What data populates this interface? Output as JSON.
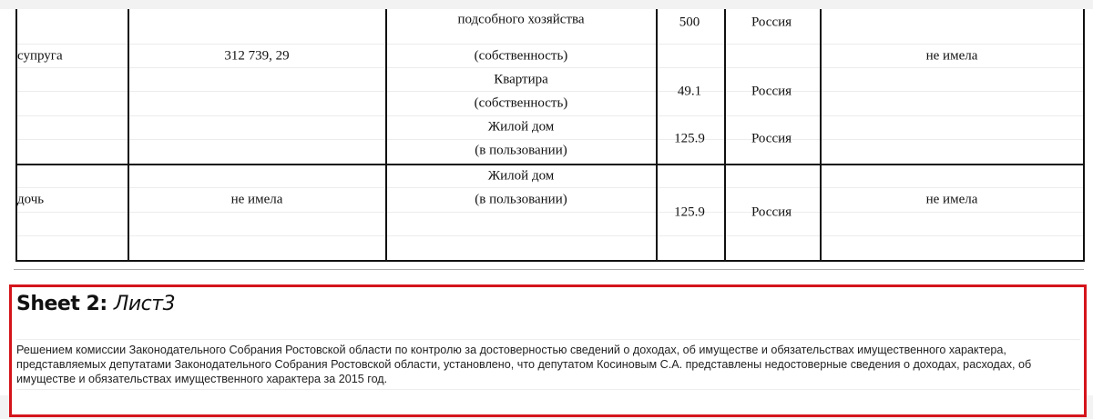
{
  "table": {
    "rows": [
      {
        "relation": "супруга",
        "income": "312 739, 29",
        "objects": [
          "подсобного хозяйства",
          "(собственность)",
          "Квартира",
          "(собственность)",
          "Жилой дом",
          "(в пользовании)"
        ],
        "areas": [
          "500",
          "49.1",
          "125.9"
        ],
        "countries": [
          "Россия",
          "Россия",
          "Россия"
        ],
        "vehicles": "не имела"
      },
      {
        "relation": "дочь",
        "income": "не имела",
        "objects": [
          "Жилой дом",
          "(в пользовании)"
        ],
        "areas": [
          "125.9"
        ],
        "countries": [
          "Россия"
        ],
        "vehicles": "не имела"
      }
    ]
  },
  "sheet": {
    "prefix": "Sheet 2:",
    "name": "Лист3",
    "text": "Решением комиссии Законодательного Собрания Ростовской области по контролю за достоверностью сведений о доходах, об имуществе и обязательствах имущественного характера, представляемых депутатами Законодательного Собрания Ростовской области, установлено, что депутатом Косиновым С.А. представлены недостоверные сведения о доходах, расходах, об имуществе и обязательствах имущественного характера за 2015 год."
  },
  "colors": {
    "highlight": "#d4141b"
  }
}
